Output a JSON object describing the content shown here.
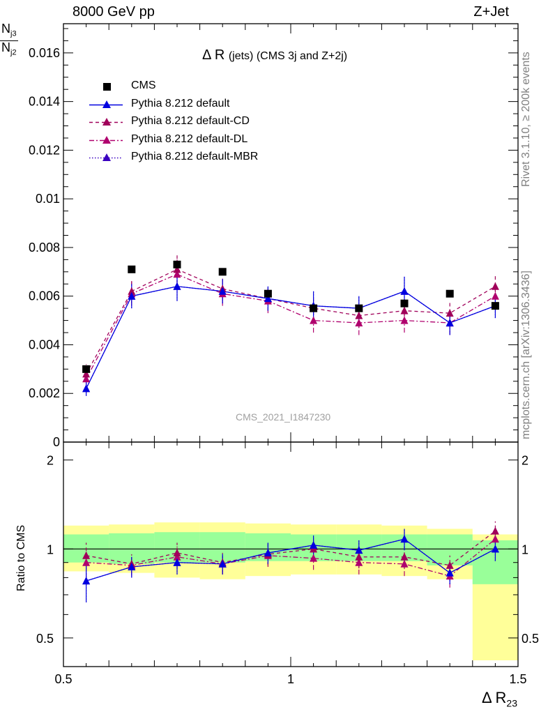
{
  "header": {
    "left": "8000 GeV pp",
    "right": "Z+Jet"
  },
  "side_labels": {
    "rivet": "Rivet 3.1.10, ≥ 200k events",
    "mcplots": "mcplots.cern.ch [arXiv:1306.3436]"
  },
  "plot_title": {
    "main": "Δ R",
    "sub": "(jets) (CMS 3j and Z+2j)"
  },
  "analysis_ref": "CMS_2021_I1847230",
  "y_label": {
    "num_base": "N",
    "num_sub": "j3",
    "den_base": "N",
    "den_sub": "j2"
  },
  "ratio_label": "Ratio to CMS",
  "x_label": {
    "base": "Δ R",
    "sub": "23"
  },
  "legend": [
    {
      "label": "CMS",
      "color": "#000000",
      "marker": "square",
      "line": "none"
    },
    {
      "label": "Pythia 8.212 default",
      "color": "#0000e0",
      "marker": "triangle",
      "line": "solid"
    },
    {
      "label": "Pythia 8.212 default-CD",
      "color": "#a0005a",
      "marker": "triangle",
      "line": "dashed"
    },
    {
      "label": "Pythia 8.212 default-DL",
      "color": "#b0006e",
      "marker": "triangle",
      "line": "dashdot"
    },
    {
      "label": "Pythia 8.212 default-MBR",
      "color": "#3a00c0",
      "marker": "triangle",
      "line": "dotted"
    }
  ],
  "chart_data": {
    "type": "scatter",
    "x_bin_centers": [
      0.55,
      0.65,
      0.75,
      0.85,
      0.95,
      1.05,
      1.15,
      1.25,
      1.35,
      1.45
    ],
    "x_bin_edges": [
      0.5,
      0.6,
      0.7,
      0.8,
      0.9,
      1.0,
      1.1,
      1.2,
      1.3,
      1.4,
      1.5
    ],
    "xlim": [
      0.5,
      1.5
    ],
    "x_ticks": [
      "0.5",
      "1",
      "1.5"
    ],
    "main": {
      "ylim": [
        0,
        0.0172
      ],
      "y_ticks": [
        "0",
        "0.002",
        "0.004",
        "0.006",
        "0.008",
        "0.01",
        "0.012",
        "0.014",
        "0.016"
      ],
      "series": [
        {
          "name": "CMS",
          "values": [
            0.003,
            0.0071,
            0.0073,
            0.007,
            0.0061,
            0.0055,
            0.0055,
            0.0057,
            0.0061,
            0.0056
          ]
        },
        {
          "name": "Pythia 8.212 default",
          "values": [
            0.0022,
            0.006,
            0.0064,
            0.0062,
            0.0059,
            0.0056,
            0.0055,
            0.0062,
            0.0049,
            0.0056
          ],
          "errors": [
            0.0003,
            0.0005,
            0.0006,
            0.0005,
            0.0005,
            0.0006,
            0.0005,
            0.0006,
            0.0005,
            0.0005
          ]
        },
        {
          "name": "Pythia 8.212 default-CD",
          "values": [
            0.0028,
            0.0062,
            0.0071,
            0.0063,
            0.0059,
            0.0055,
            0.0052,
            0.0054,
            0.0053,
            0.0064
          ],
          "errors": [
            0.0004,
            0.0005,
            0.0006,
            0.0005,
            0.0005,
            0.0005,
            0.0005,
            0.0005,
            0.0005,
            0.0005
          ]
        },
        {
          "name": "Pythia 8.212 default-DL",
          "values": [
            0.0026,
            0.0061,
            0.0069,
            0.0061,
            0.0058,
            0.005,
            0.0049,
            0.005,
            0.0049,
            0.006
          ],
          "errors": [
            0.0004,
            0.0005,
            0.0006,
            0.0005,
            0.0005,
            0.0005,
            0.0005,
            0.0005,
            0.0005,
            0.0005
          ]
        },
        {
          "name": "Pythia 8.212 default-MBR",
          "values": [
            0.0022,
            0.006,
            0.0064,
            0.0062,
            0.0059,
            0.0056,
            0.0055,
            0.0062,
            0.0049,
            0.0056
          ],
          "errors": [
            0.0003,
            0.0005,
            0.0006,
            0.0005,
            0.0005,
            0.0006,
            0.0005,
            0.0006,
            0.0005,
            0.0005
          ]
        }
      ]
    },
    "ratio": {
      "ylim_log": [
        0.4,
        2.3
      ],
      "y_ticks": [
        "0.5",
        "1",
        "2"
      ],
      "green_band": [
        [
          0.9,
          1.12
        ],
        [
          0.89,
          1.13
        ],
        [
          0.9,
          1.14
        ],
        [
          0.9,
          1.14
        ],
        [
          0.91,
          1.13
        ],
        [
          0.91,
          1.12
        ],
        [
          0.91,
          1.12
        ],
        [
          0.91,
          1.12
        ],
        [
          0.88,
          1.12
        ],
        [
          0.76,
          1.07
        ]
      ],
      "yellow_band": [
        [
          0.84,
          1.2
        ],
        [
          0.83,
          1.21
        ],
        [
          0.8,
          1.23
        ],
        [
          0.79,
          1.23
        ],
        [
          0.81,
          1.22
        ],
        [
          0.82,
          1.21
        ],
        [
          0.82,
          1.21
        ],
        [
          0.81,
          1.2
        ],
        [
          0.79,
          1.17
        ],
        [
          0.42,
          1.12
        ]
      ],
      "series": [
        {
          "name": "Pythia 8.212 default",
          "values": [
            0.78,
            0.87,
            0.9,
            0.89,
            0.97,
            1.03,
            0.99,
            1.08,
            0.83,
            1.0
          ],
          "errors": [
            0.12,
            0.07,
            0.08,
            0.07,
            0.08,
            0.08,
            0.08,
            0.09,
            0.07,
            0.09
          ]
        },
        {
          "name": "Pythia 8.212 default-CD",
          "values": [
            0.95,
            0.89,
            0.97,
            0.9,
            0.96,
            1.0,
            0.94,
            0.94,
            0.88,
            1.15
          ],
          "errors": [
            0.1,
            0.07,
            0.08,
            0.07,
            0.08,
            0.08,
            0.08,
            0.08,
            0.07,
            0.09
          ]
        },
        {
          "name": "Pythia 8.212 default-DL",
          "values": [
            0.9,
            0.88,
            0.94,
            0.89,
            0.95,
            0.93,
            0.9,
            0.89,
            0.81,
            1.08
          ],
          "errors": [
            0.1,
            0.07,
            0.08,
            0.07,
            0.08,
            0.08,
            0.08,
            0.08,
            0.07,
            0.09
          ]
        },
        {
          "name": "Pythia 8.212 default-MBR",
          "values": [
            0.78,
            0.87,
            0.9,
            0.89,
            0.97,
            1.03,
            0.99,
            1.08,
            0.83,
            1.0
          ],
          "errors": [
            0.12,
            0.07,
            0.08,
            0.07,
            0.08,
            0.08,
            0.08,
            0.09,
            0.07,
            0.09
          ]
        }
      ]
    }
  }
}
